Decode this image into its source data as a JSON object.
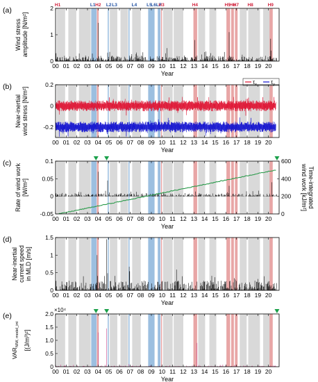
{
  "colors": {
    "gray_band": "#d9d9d9",
    "blue_band": "#9cbfe0",
    "red_band": "#e8a6a6",
    "red_label": "#d0203a",
    "blue_label": "#1f4fa0",
    "series_black": "#000000",
    "series_red": "#e01030",
    "series_blue": "#1010d0",
    "series_green": "#2a9a4a",
    "series_magenta": "#c0307a",
    "marker_green": "#1aa04a"
  },
  "chart_data": {
    "type": "line",
    "shared": {
      "xlabel": "Year",
      "xlim": [
        2000,
        2021
      ],
      "x_ticks": [
        2000,
        2001,
        2002,
        2003,
        2004,
        2005,
        2006,
        2007,
        2008,
        2009,
        2010,
        2011,
        2012,
        2013,
        2014,
        2015,
        2016,
        2017,
        2018,
        2019,
        2020
      ],
      "x_tick_labels": [
        "00",
        "01",
        "02",
        "03",
        "04",
        "05",
        "06",
        "07",
        "08",
        "09",
        "10",
        "11",
        "12",
        "13",
        "14",
        "15",
        "16",
        "17",
        "18",
        "19",
        "20"
      ],
      "gray_periods": [
        [
          2000.1,
          2000.9
        ],
        [
          2001.2,
          2001.95
        ],
        [
          2002.2,
          2003.3
        ],
        [
          2005.1,
          2005.8
        ],
        [
          2006.1,
          2006.8
        ],
        [
          2007.2,
          2008.0
        ],
        [
          2010.1,
          2011.0
        ],
        [
          2011.1,
          2012.0
        ],
        [
          2013.4,
          2014.05
        ],
        [
          2014.45,
          2015.1
        ],
        [
          2017.3,
          2017.95
        ],
        [
          2018.1,
          2019.2
        ],
        [
          2019.5,
          2020.2
        ]
      ],
      "blue_periods": [
        [
          2003.35,
          2003.85
        ],
        [
          2004.9,
          2005.0
        ],
        [
          2006.85,
          2006.95
        ],
        [
          2008.7,
          2009.3
        ],
        [
          2009.6,
          2009.85
        ]
      ],
      "red_periods": [
        [
          2003.88,
          2004.05
        ],
        [
          2009.9,
          2010.0
        ],
        [
          2012.95,
          2013.3
        ],
        [
          2016.05,
          2016.4
        ],
        [
          2016.5,
          2016.75
        ],
        [
          2016.85,
          2017.1
        ],
        [
          2020.1,
          2020.4
        ]
      ],
      "hurricane_labels": [
        {
          "text": "H1",
          "x": 2000.2
        },
        {
          "text": "H2",
          "x": 2004.0
        },
        {
          "text": "H3",
          "x": 2009.95
        },
        {
          "text": "H4",
          "x": 2013.1
        },
        {
          "text": "H5",
          "x": 2016.15
        },
        {
          "text": "H6",
          "x": 2016.6
        },
        {
          "text": "H7",
          "x": 2016.95
        },
        {
          "text": "H8",
          "x": 2018.3
        },
        {
          "text": "H9",
          "x": 2020.2
        }
      ],
      "lowpressure_labels": [
        {
          "text": "L1",
          "x": 2003.5
        },
        {
          "text": "L2",
          "x": 2005.0
        },
        {
          "text": "L3",
          "x": 2005.55
        },
        {
          "text": "L4",
          "x": 2007.4
        },
        {
          "text": "L5",
          "x": 2008.8
        },
        {
          "text": "L6",
          "x": 2009.2
        },
        {
          "text": "L7",
          "x": 2009.7
        }
      ],
      "event_markers_x": [
        2003.8,
        2004.8,
        2020.8
      ]
    },
    "panels": [
      {
        "id": "a",
        "panel_label": "(a)",
        "type": "line",
        "ylabel": "Wind stress amplitude [N/m²]",
        "ylim": [
          0,
          2
        ],
        "y_ticks": [
          0,
          1,
          2
        ],
        "typical_level": 0.15,
        "peaks": [
          {
            "x": 2004.0,
            "y": 1.45
          },
          {
            "x": 2016.3,
            "y": 1.1
          },
          {
            "x": 2020.2,
            "y": 0.85
          },
          {
            "x": 2013.1,
            "y": 0.8
          }
        ]
      },
      {
        "id": "b",
        "panel_label": "(b)",
        "type": "line",
        "ylabel": "Near-inertial wind stress [N/m²]",
        "ylim": [
          -0.3,
          0.2
        ],
        "y_ticks": [
          -0.2,
          0,
          0.2
        ],
        "series": [
          {
            "name": "τx",
            "color_key": "series_red",
            "offset": 0.0,
            "amplitude": 0.03
          },
          {
            "name": "τy",
            "color_key": "series_blue",
            "offset": -0.2,
            "amplitude": 0.03
          }
        ]
      },
      {
        "id": "c",
        "panel_label": "(c)",
        "type": "line",
        "ylabel": "Rate of wind work [W/m²]",
        "ylim": [
          -0.05,
          0.1
        ],
        "y_ticks": [
          -0.05,
          0,
          0.05,
          0.1
        ],
        "ylabel_right": "Time-integrated wind work [kJ/m²]",
        "ylim_right": [
          0,
          600
        ],
        "y_ticks_right": [
          0,
          200,
          400,
          600
        ],
        "cumulative": {
          "start": 0,
          "end": 500
        },
        "peaks": [
          {
            "x": 2004.0,
            "y": 0.07
          },
          {
            "x": 2004.9,
            "y": 0.045
          },
          {
            "x": 2016.3,
            "y": 0.03
          },
          {
            "x": 2020.3,
            "y": 0.04
          }
        ]
      },
      {
        "id": "d",
        "panel_label": "(d)",
        "type": "line",
        "ylabel": "Near-inertial current speed in MLD [m/s]",
        "ylim": [
          0,
          1.5
        ],
        "y_ticks": [
          0,
          0.5,
          1,
          1.5
        ],
        "typical_level": 0.2,
        "peaks": [
          {
            "x": 2004.8,
            "y": 1.45
          },
          {
            "x": 2003.9,
            "y": 1.0
          },
          {
            "x": 2020.8,
            "y": 1.4
          }
        ]
      },
      {
        "id": "e",
        "panel_label": "(e)",
        "type": "line",
        "ylabel": "VARNIW, model_int [(J/m³)²]",
        "ylim": [
          0,
          2
        ],
        "y_ticks": [
          0,
          0.5,
          1,
          1.5,
          2
        ],
        "y_tick_labels": [
          "0",
          "0.5",
          "1.0",
          "1.5",
          "2.0"
        ],
        "y_scale_note": "×10⁴",
        "peaks": [
          {
            "x": 2004.0,
            "y": 1.3
          },
          {
            "x": 2004.8,
            "y": 1.45
          },
          {
            "x": 2013.3,
            "y": 0.9
          },
          {
            "x": 2020.8,
            "y": 0.8
          }
        ]
      }
    ]
  }
}
